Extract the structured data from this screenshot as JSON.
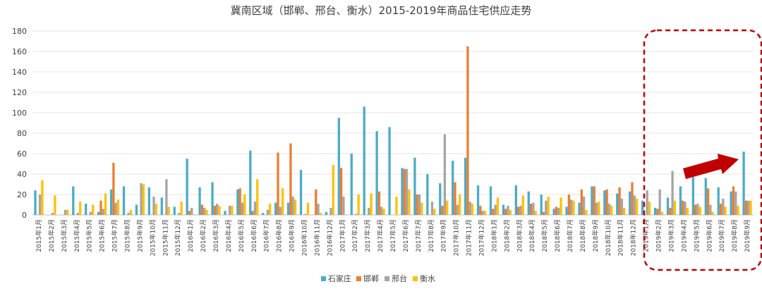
{
  "chart_data": {
    "type": "bar",
    "title": "冀南区域（邯郸、邢台、衡水）2015-2019年商品住宅供应走势",
    "xlabel": "",
    "ylabel": "",
    "ylim": [
      0,
      180
    ],
    "yticks": [
      0,
      20,
      40,
      60,
      80,
      100,
      120,
      140,
      160,
      180
    ],
    "grid": true,
    "legend_position": "bottom",
    "categories": [
      "2015年1月",
      "2015年2月",
      "2015年3月",
      "2015年4月",
      "2015年5月",
      "2015年6月",
      "2015年7月",
      "2015年8月",
      "2015年9月",
      "2015年10月",
      "2015年11月",
      "2015年12月",
      "2016年1月",
      "2016年2月",
      "2016年3月",
      "2016年4月",
      "2016年5月",
      "2016年6月",
      "2016年7月",
      "2016年8月",
      "2016年9月",
      "2016年10月",
      "2016年11月",
      "2016年12月",
      "2017年1月",
      "2017年2月",
      "2017年3月",
      "2017年4月",
      "2017年5月",
      "2017年6月",
      "2017年7月",
      "2017年8月",
      "2017年9月",
      "2017年10月",
      "2017年11月",
      "2017年12月",
      "2018年1月",
      "2018年2月",
      "2018年3月",
      "2018年4月",
      "2018年5月",
      "2018年6月",
      "2018年7月",
      "2018年8月",
      "2018年9月",
      "2018年10月",
      "2018年11月",
      "2018年12月",
      "2019年1月",
      "2019年2月",
      "2019年3月",
      "2019年4月",
      "2019年5月",
      "2019年6月",
      "2019年7月",
      "2019年8月",
      "2019年9月"
    ],
    "series": [
      {
        "name": "石家庄",
        "color": "#4bacc6",
        "values": [
          24,
          0,
          0,
          28,
          11,
          3,
          25,
          28,
          10,
          27,
          17,
          8,
          55,
          27,
          32,
          4,
          25,
          63,
          2,
          12,
          12,
          44,
          0,
          3,
          95,
          60,
          106,
          82,
          86,
          46,
          56,
          40,
          31,
          53,
          56,
          29,
          28,
          10,
          29,
          23,
          20,
          6,
          8,
          12,
          28,
          24,
          21,
          23,
          14,
          7,
          17,
          28,
          37,
          36,
          27,
          23,
          62
        ]
      },
      {
        "name": "邯郸",
        "color": "#ed7d31",
        "values": [
          0,
          0,
          0,
          0,
          0,
          14,
          51,
          0,
          0,
          0,
          0,
          0,
          4,
          10,
          9,
          0,
          26,
          4,
          0,
          61,
          70,
          0,
          25,
          0,
          46,
          0,
          0,
          23,
          0,
          45,
          20,
          0,
          9,
          32,
          165,
          9,
          6,
          6,
          8,
          11,
          3,
          8,
          20,
          25,
          28,
          25,
          27,
          32,
          0,
          6,
          7,
          14,
          10,
          26,
          11,
          28,
          14
        ]
      },
      {
        "name": "邢台",
        "color": "#a5a5a5",
        "values": [
          20,
          2,
          5,
          2,
          3,
          6,
          12,
          2,
          31,
          18,
          35,
          2,
          7,
          7,
          11,
          9,
          12,
          13,
          5,
          8,
          18,
          1,
          11,
          7,
          18,
          1,
          7,
          8,
          0,
          45,
          20,
          13,
          79,
          10,
          13,
          4,
          10,
          9,
          9,
          12,
          14,
          7,
          15,
          18,
          12,
          11,
          16,
          19,
          24,
          25,
          43,
          13,
          11,
          10,
          16,
          23,
          14
        ]
      },
      {
        "name": "衡水",
        "color": "#ffc000",
        "values": [
          34,
          19,
          5,
          13,
          10,
          21,
          15,
          5,
          30,
          11,
          8,
          13,
          0,
          5,
          9,
          9,
          20,
          35,
          11,
          26,
          15,
          12,
          2,
          49,
          0,
          20,
          21,
          6,
          18,
          25,
          12,
          6,
          14,
          20,
          11,
          4,
          17,
          5,
          19,
          4,
          18,
          17,
          14,
          5,
          13,
          9,
          7,
          16,
          13,
          3,
          14,
          7,
          8,
          3,
          8,
          9,
          14
        ]
      }
    ]
  }
}
